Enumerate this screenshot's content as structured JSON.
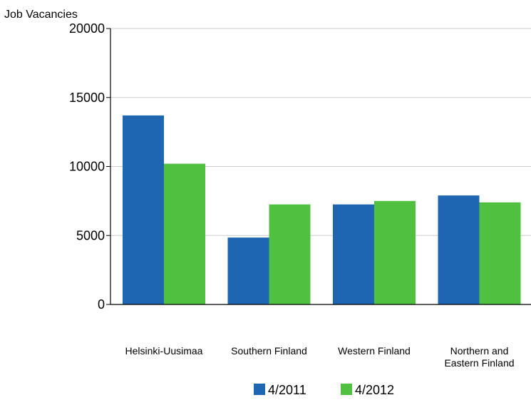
{
  "chart_data": {
    "type": "bar",
    "title": "",
    "ylabel": "Job Vacancies",
    "xlabel": "",
    "ylim": [
      0,
      20000
    ],
    "yticks": [
      "0",
      "5000",
      "10000",
      "15000",
      "20000"
    ],
    "grid": true,
    "legend": "bottom",
    "categories": [
      [
        "Helsinki-Uusimaa"
      ],
      [
        "Southern Finland"
      ],
      [
        "Western Finland"
      ],
      [
        "Northern and",
        "Eastern Finland"
      ]
    ],
    "series": [
      {
        "name": "4/2011",
        "color": "#1f66b0",
        "values": [
          13700,
          4850,
          7250,
          7900
        ]
      },
      {
        "name": "4/2012",
        "color": "#50c040",
        "values": [
          10200,
          7250,
          7500,
          7400
        ]
      }
    ]
  }
}
